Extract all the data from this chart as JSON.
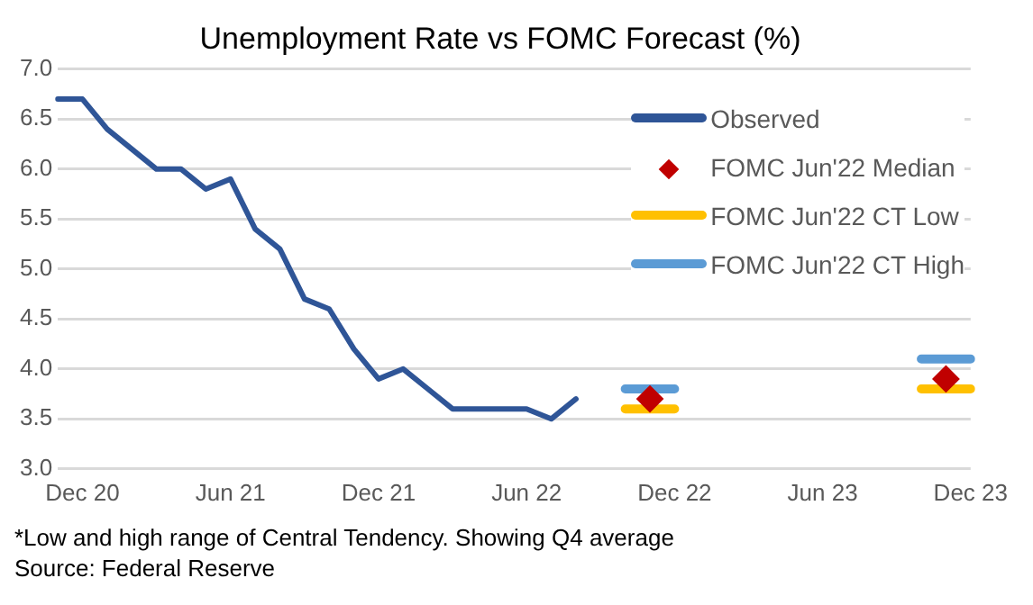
{
  "chart_data": {
    "type": "line",
    "title": "Unemployment Rate vs FOMC Forecast (%)",
    "categories": [
      null,
      "Dec 20",
      null,
      null,
      null,
      null,
      null,
      "Jun 21",
      null,
      null,
      null,
      null,
      null,
      "Dec 21",
      null,
      null,
      null,
      null,
      null,
      "Jun 22",
      null,
      null,
      null,
      null,
      null,
      "Dec 22",
      null,
      null,
      null,
      null,
      null,
      "Jun 23",
      null,
      null,
      null,
      null,
      null,
      "Dec 23"
    ],
    "series": [
      {
        "name": "Observed",
        "type": "line",
        "color": "#2f5597",
        "marker": "none",
        "line_style": "solid",
        "values": [
          6.7,
          6.7,
          6.4,
          6.2,
          6.0,
          6.0,
          5.8,
          5.9,
          5.4,
          5.2,
          4.7,
          4.6,
          4.2,
          3.9,
          4.0,
          3.8,
          3.6,
          3.6,
          3.6,
          3.6,
          3.5,
          3.7,
          null,
          null,
          null,
          null,
          null,
          null,
          null,
          null,
          null,
          null,
          null,
          null,
          null,
          null,
          null,
          null
        ]
      },
      {
        "name": "FOMC Jun'22 Median",
        "type": "scatter",
        "color": "#c00000",
        "marker": "diamond",
        "values": [
          null,
          null,
          null,
          null,
          null,
          null,
          null,
          null,
          null,
          null,
          null,
          null,
          null,
          null,
          null,
          null,
          null,
          null,
          null,
          null,
          null,
          null,
          null,
          null,
          3.7,
          null,
          null,
          null,
          null,
          null,
          null,
          null,
          null,
          null,
          null,
          null,
          3.9,
          null
        ]
      },
      {
        "name": "FOMC Jun'22 CT Low",
        "type": "line",
        "color": "#ffc000",
        "marker": "none",
        "values": [
          null,
          null,
          null,
          null,
          null,
          null,
          null,
          null,
          null,
          null,
          null,
          null,
          null,
          null,
          null,
          null,
          null,
          null,
          null,
          null,
          null,
          null,
          null,
          3.6,
          3.6,
          3.6,
          null,
          null,
          null,
          null,
          null,
          null,
          null,
          null,
          null,
          3.8,
          3.8,
          3.8
        ]
      },
      {
        "name": "FOMC Jun'22 CT High",
        "type": "line",
        "color": "#5b9bd5",
        "marker": "none",
        "values": [
          null,
          null,
          null,
          null,
          null,
          null,
          null,
          null,
          null,
          null,
          null,
          null,
          null,
          null,
          null,
          null,
          null,
          null,
          null,
          null,
          null,
          null,
          null,
          3.8,
          3.8,
          3.8,
          null,
          null,
          null,
          null,
          null,
          null,
          null,
          null,
          null,
          4.1,
          4.1,
          4.1
        ]
      }
    ],
    "ylim": [
      3,
      7
    ],
    "yticks": [
      {
        "value": 3,
        "label": "3.0"
      },
      {
        "value": 3.5,
        "label": "3.5"
      },
      {
        "value": 4,
        "label": "4.0"
      },
      {
        "value": 4.5,
        "label": "4.5"
      },
      {
        "value": 5,
        "label": "5.0"
      },
      {
        "value": 5.5,
        "label": "5.5"
      },
      {
        "value": 6,
        "label": "6.0"
      },
      {
        "value": 6.5,
        "label": "6.5"
      },
      {
        "value": 7,
        "label": "7.0"
      }
    ],
    "grid": "y",
    "legend": "top right",
    "annotations": [
      "*Low and high range of Central Tendency. Showing Q4 average",
      "Source: Federal Reserve"
    ]
  }
}
